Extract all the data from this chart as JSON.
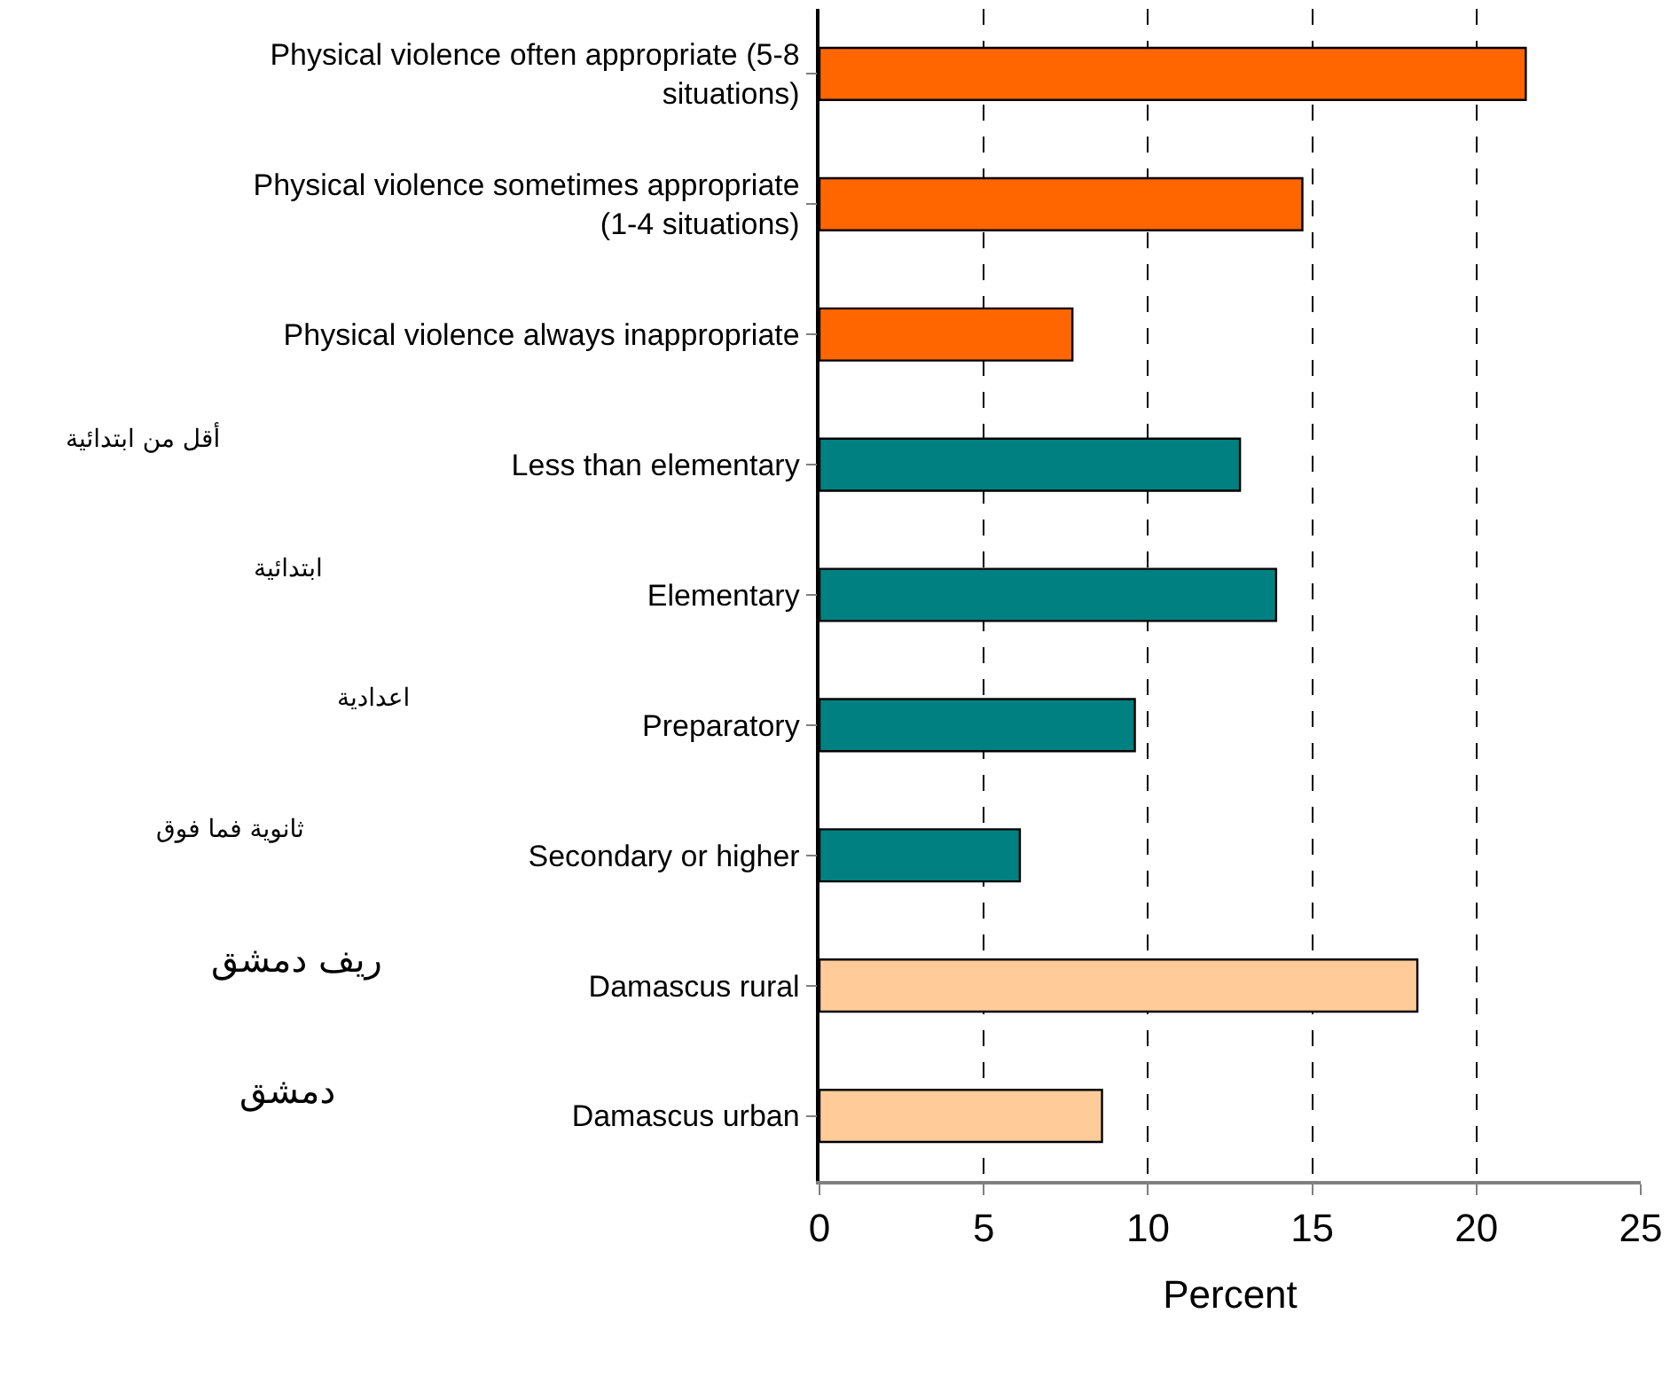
{
  "chart_data": {
    "type": "bar",
    "orientation": "horizontal",
    "xlabel": "Percent",
    "categories": [
      "Physical violence often appropriate (5-8 situations)",
      "Physical violence sometimes appropriate (1-4 situations)",
      "Physical violence always inappropriate",
      "Less than elementary",
      "Elementary",
      "Preparatory",
      "Secondary or higher",
      "Damascus rural",
      "Damascus urban"
    ],
    "values": [
      21.5,
      14.7,
      7.7,
      12.8,
      13.9,
      9.6,
      6.1,
      18.2,
      8.6
    ],
    "colors": [
      "#ff6600",
      "#ff6600",
      "#ff6600",
      "#008080",
      "#008080",
      "#008080",
      "#008080",
      "#ffcc99",
      "#ffcc99"
    ],
    "xlim": [
      0,
      25
    ],
    "xticks": [
      0,
      5,
      10,
      15,
      20,
      25
    ],
    "grid": "x",
    "annotations": [
      "أقل من ابتدائية",
      "ابتدائية",
      "اعدادية",
      "ثانوية فما فوق",
      "ريف دمشق",
      "دمشق"
    ]
  }
}
